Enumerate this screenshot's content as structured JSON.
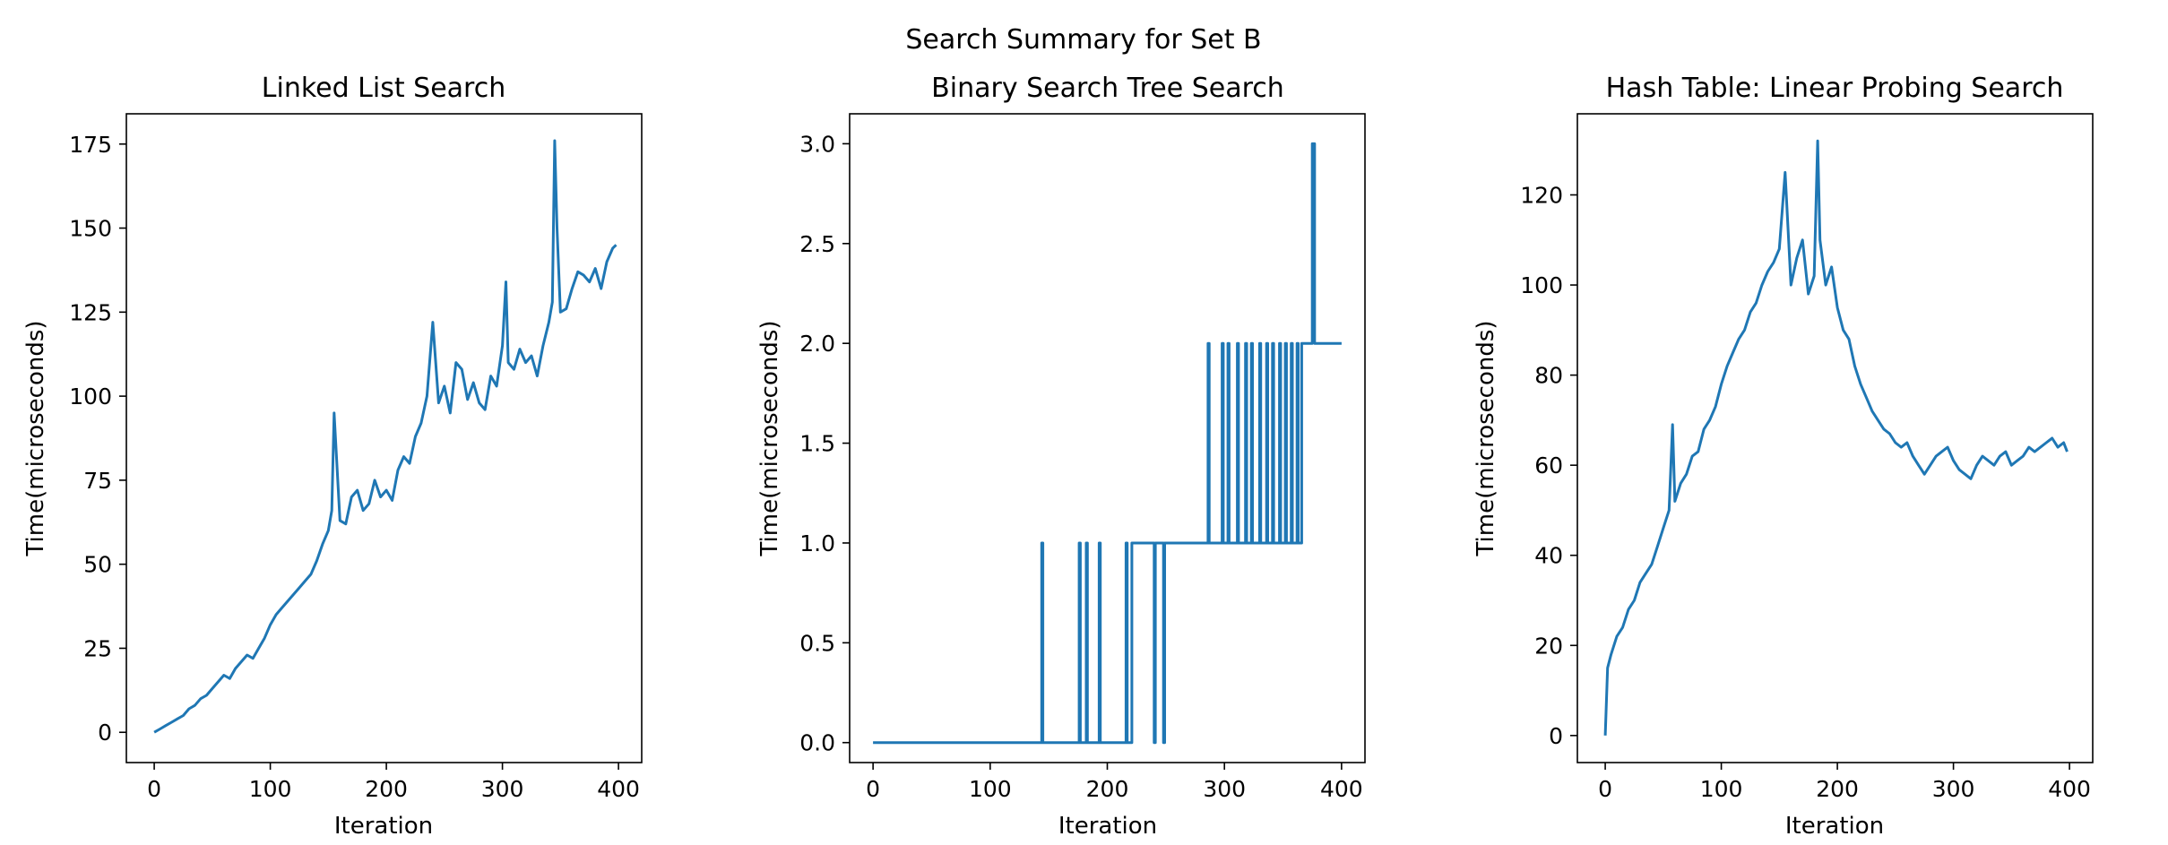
{
  "figure": {
    "suptitle": "Search Summary for Set B"
  },
  "chart_data": [
    {
      "type": "line",
      "title": "Linked List Search",
      "xlabel": "Iteration",
      "ylabel": "Time(microseconds)",
      "xlim": [
        -24,
        420
      ],
      "ylim": [
        -9,
        184
      ],
      "xticks": [
        0,
        100,
        200,
        300,
        400
      ],
      "yticks": [
        0,
        25,
        50,
        75,
        100,
        125,
        150,
        175
      ],
      "color": "#1f77b4",
      "series": [
        {
          "x": [
            0,
            5,
            10,
            15,
            20,
            25,
            30,
            35,
            40,
            45,
            50,
            55,
            60,
            65,
            70,
            75,
            80,
            85,
            90,
            95,
            100,
            105,
            110,
            115,
            120,
            125,
            130,
            135,
            140,
            145,
            150,
            153,
            155,
            160,
            165,
            170,
            175,
            180,
            185,
            190,
            195,
            200,
            205,
            210,
            215,
            220,
            225,
            230,
            235,
            240,
            245,
            250,
            255,
            260,
            265,
            270,
            275,
            280,
            285,
            290,
            295,
            300,
            303,
            305,
            310,
            315,
            320,
            325,
            330,
            335,
            340,
            343,
            345,
            347,
            350,
            355,
            360,
            365,
            370,
            375,
            380,
            385,
            390,
            395,
            398
          ],
          "y": [
            0,
            1,
            2,
            3,
            4,
            5,
            7,
            8,
            10,
            11,
            13,
            15,
            17,
            16,
            19,
            21,
            23,
            22,
            25,
            28,
            32,
            35,
            37,
            39,
            41,
            43,
            45,
            47,
            51,
            56,
            60,
            66,
            95,
            63,
            62,
            70,
            72,
            66,
            68,
            75,
            70,
            72,
            69,
            78,
            82,
            80,
            88,
            92,
            100,
            122,
            98,
            103,
            95,
            110,
            108,
            99,
            104,
            98,
            96,
            106,
            103,
            115,
            134,
            110,
            108,
            114,
            110,
            112,
            106,
            115,
            122,
            128,
            176,
            150,
            125,
            126,
            132,
            137,
            136,
            134,
            138,
            132,
            140,
            144,
            145
          ]
        }
      ]
    },
    {
      "type": "line",
      "title": "Binary Search Tree Search",
      "xlabel": "Iteration",
      "ylabel": "Time(microseconds)",
      "xlim": [
        -20,
        420
      ],
      "ylim": [
        -0.1,
        3.15
      ],
      "xticks": [
        0,
        100,
        200,
        300,
        400
      ],
      "yticks": [
        0.0,
        0.5,
        1.0,
        1.5,
        2.0,
        2.5,
        3.0
      ],
      "color": "#1f77b4",
      "series": [
        {
          "x": [
            0,
            144,
            144,
            145,
            145,
            176,
            176,
            177,
            177,
            182,
            182,
            183,
            183,
            193,
            193,
            194,
            194,
            216,
            216,
            217,
            217,
            221,
            221,
            222,
            222,
            240,
            240,
            241,
            241,
            248,
            248,
            249,
            249,
            286,
            286,
            287,
            287,
            298,
            298,
            299,
            299,
            303,
            303,
            304,
            304,
            311,
            311,
            312,
            312,
            318,
            318,
            319,
            319,
            323,
            323,
            324,
            324,
            330,
            330,
            331,
            331,
            336,
            336,
            337,
            337,
            341,
            341,
            342,
            342,
            347,
            347,
            348,
            348,
            352,
            352,
            353,
            353,
            357,
            357,
            358,
            358,
            362,
            362,
            363,
            363,
            366,
            366,
            367,
            367,
            375,
            375,
            377,
            377,
            400
          ],
          "y": [
            0,
            0,
            1,
            1,
            0,
            0,
            1,
            1,
            0,
            0,
            1,
            1,
            0,
            0,
            1,
            1,
            0,
            0,
            1,
            1,
            0,
            0,
            1,
            1,
            1,
            1,
            0,
            0,
            1,
            1,
            0,
            0,
            1,
            1,
            2,
            2,
            1,
            1,
            2,
            2,
            1,
            1,
            2,
            2,
            1,
            1,
            2,
            2,
            1,
            1,
            2,
            2,
            1,
            1,
            2,
            2,
            1,
            1,
            2,
            2,
            1,
            1,
            2,
            2,
            1,
            1,
            2,
            2,
            1,
            1,
            2,
            2,
            1,
            1,
            2,
            2,
            1,
            1,
            2,
            2,
            1,
            1,
            2,
            2,
            1,
            1,
            2,
            2,
            2,
            2,
            3,
            3,
            2,
            2
          ]
        }
      ]
    },
    {
      "type": "line",
      "title": "Hash Table: Linear Probing Search",
      "xlabel": "Iteration",
      "ylabel": "Time(microseconds)",
      "xlim": [
        -24,
        420
      ],
      "ylim": [
        -6,
        138
      ],
      "xticks": [
        0,
        100,
        200,
        300,
        400
      ],
      "yticks": [
        0,
        20,
        40,
        60,
        80,
        100,
        120
      ],
      "color": "#1f77b4",
      "series": [
        {
          "x": [
            0,
            2,
            5,
            10,
            15,
            20,
            25,
            30,
            35,
            40,
            45,
            50,
            55,
            58,
            60,
            65,
            70,
            75,
            80,
            85,
            90,
            95,
            100,
            105,
            110,
            115,
            120,
            125,
            130,
            135,
            140,
            145,
            150,
            155,
            160,
            165,
            170,
            175,
            180,
            183,
            185,
            190,
            195,
            200,
            205,
            210,
            215,
            220,
            225,
            230,
            235,
            240,
            245,
            250,
            255,
            260,
            265,
            270,
            275,
            280,
            285,
            290,
            295,
            300,
            305,
            310,
            315,
            320,
            325,
            330,
            335,
            340,
            345,
            350,
            355,
            360,
            365,
            370,
            375,
            380,
            385,
            390,
            395,
            398
          ],
          "y": [
            0,
            15,
            18,
            22,
            24,
            28,
            30,
            34,
            36,
            38,
            42,
            46,
            50,
            69,
            52,
            56,
            58,
            62,
            63,
            68,
            70,
            73,
            78,
            82,
            85,
            88,
            90,
            94,
            96,
            100,
            103,
            105,
            108,
            125,
            100,
            106,
            110,
            98,
            102,
            132,
            110,
            100,
            104,
            95,
            90,
            88,
            82,
            78,
            75,
            72,
            70,
            68,
            67,
            65,
            64,
            65,
            62,
            60,
            58,
            60,
            62,
            63,
            64,
            61,
            59,
            58,
            57,
            60,
            62,
            61,
            60,
            62,
            63,
            60,
            61,
            62,
            64,
            63,
            64,
            65,
            66,
            64,
            65,
            63
          ]
        }
      ]
    }
  ]
}
